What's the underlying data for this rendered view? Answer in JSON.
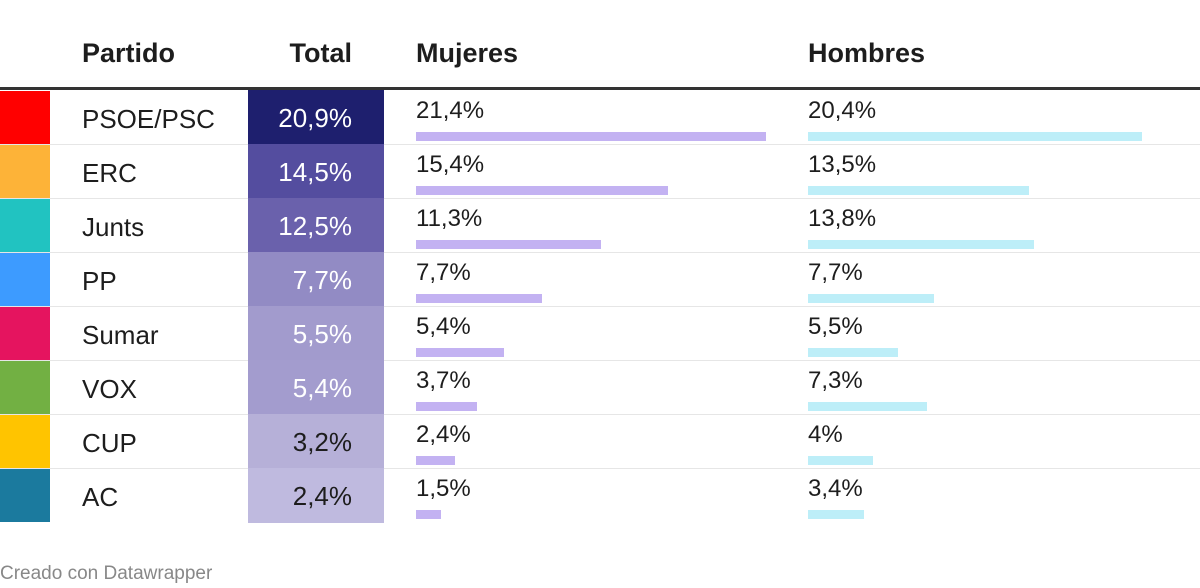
{
  "headers": {
    "partido": "Partido",
    "total": "Total",
    "mujeres": "Mujeres",
    "hombres": "Hombres"
  },
  "chart_data": {
    "type": "table",
    "columns": [
      "Partido",
      "Total",
      "Mujeres",
      "Hombres"
    ],
    "bar_max": 22,
    "rows": [
      {
        "party": "PSOE/PSC",
        "color": "#ff0000",
        "total": 20.9,
        "total_label": "20,9%",
        "total_bg": "#1e1f6e",
        "total_fg": "#ffffff",
        "mujeres": 21.4,
        "mujeres_label": "21,4%",
        "hombres": 20.4,
        "hombres_label": "20,4%"
      },
      {
        "party": "ERC",
        "color": "#fdb338",
        "total": 14.5,
        "total_label": "14,5%",
        "total_bg": "#544d9f",
        "total_fg": "#ffffff",
        "mujeres": 15.4,
        "mujeres_label": "15,4%",
        "hombres": 13.5,
        "hombres_label": "13,5%"
      },
      {
        "party": "Junts",
        "color": "#21c3c1",
        "total": 12.5,
        "total_label": "12,5%",
        "total_bg": "#6a61ac",
        "total_fg": "#ffffff",
        "mujeres": 11.3,
        "mujeres_label": "11,3%",
        "hombres": 13.8,
        "hombres_label": "13,8%"
      },
      {
        "party": "PP",
        "color": "#3d9bff",
        "total": 7.7,
        "total_label": "7,7%",
        "total_bg": "#928bc4",
        "total_fg": "#ffffff",
        "mujeres": 7.7,
        "mujeres_label": "7,7%",
        "hombres": 7.7,
        "hombres_label": "7,7%"
      },
      {
        "party": "Sumar",
        "color": "#e5145f",
        "total": 5.5,
        "total_label": "5,5%",
        "total_bg": "#a29bcd",
        "total_fg": "#ffffff",
        "mujeres": 5.4,
        "mujeres_label": "5,4%",
        "hombres": 5.5,
        "hombres_label": "5,5%"
      },
      {
        "party": "VOX",
        "color": "#72b043",
        "total": 5.4,
        "total_label": "5,4%",
        "total_bg": "#a39cce",
        "total_fg": "#ffffff",
        "mujeres": 3.7,
        "mujeres_label": "3,7%",
        "hombres": 7.3,
        "hombres_label": "7,3%"
      },
      {
        "party": "CUP",
        "color": "#ffc400",
        "total": 3.2,
        "total_label": "3,2%",
        "total_bg": "#b6b0d8",
        "total_fg": "#1d1d1d",
        "mujeres": 2.4,
        "mujeres_label": "2,4%",
        "hombres": 4,
        "hombres_label": "4%"
      },
      {
        "party": "AC",
        "color": "#1b7a9e",
        "total": 2.4,
        "total_label": "2,4%",
        "total_bg": "#bfbadf",
        "total_fg": "#1d1d1d",
        "mujeres": 1.5,
        "mujeres_label": "1,5%",
        "hombres": 3.4,
        "hombres_label": "3,4%"
      }
    ]
  },
  "footer": "Creado con Datawrapper"
}
